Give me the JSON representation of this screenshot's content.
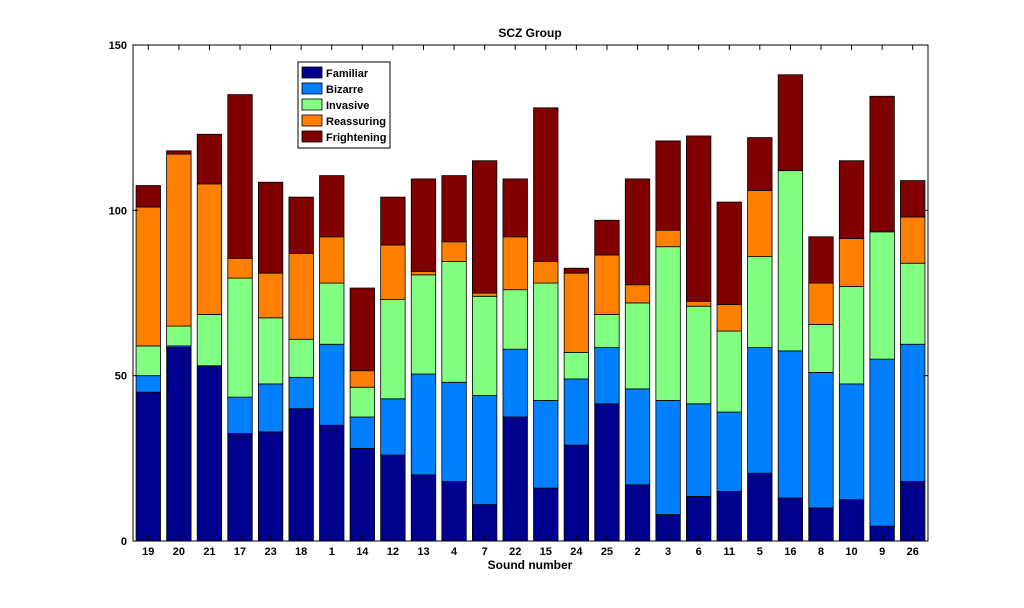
{
  "chart_data": {
    "type": "bar",
    "stacked": true,
    "title": "SCZ Group",
    "xlabel": "Sound number",
    "ylabel": "",
    "ylim": [
      0,
      150
    ],
    "yticks": [
      0,
      50,
      100,
      150
    ],
    "grid": false,
    "legend_position": "top-left",
    "categories": [
      "19",
      "20",
      "21",
      "17",
      "23",
      "18",
      "1",
      "14",
      "12",
      "13",
      "4",
      "7",
      "22",
      "15",
      "24",
      "25",
      "2",
      "3",
      "6",
      "11",
      "5",
      "16",
      "8",
      "10",
      "9",
      "26"
    ],
    "series": [
      {
        "name": "Familiar",
        "color": "#00008F",
        "values": [
          45,
          58.5,
          53,
          32.5,
          33,
          40,
          35,
          28,
          26,
          20,
          18,
          11,
          37.5,
          16,
          29,
          41.5,
          17,
          8,
          13.5,
          15,
          20.5,
          13,
          10,
          12.5,
          4.5,
          18
        ]
      },
      {
        "name": "Bizarre",
        "color": "#0080FF",
        "values": [
          5,
          0.5,
          0,
          11,
          14.5,
          9.5,
          24.5,
          9.5,
          17,
          30.5,
          30,
          33,
          20.5,
          26.5,
          20,
          17,
          29,
          34.5,
          28,
          24,
          38,
          44.5,
          41,
          35,
          50.5,
          41.5
        ]
      },
      {
        "name": "Invasive",
        "color": "#80FF80",
        "values": [
          9,
          6,
          15.5,
          36,
          20,
          11.5,
          18.5,
          9,
          30,
          30,
          36.5,
          30,
          18,
          35.5,
          8,
          10,
          26,
          46.5,
          29.5,
          24.5,
          27.5,
          54.5,
          14.5,
          29.5,
          38.5,
          24.5
        ]
      },
      {
        "name": "Reassuring",
        "color": "#FF7F00",
        "values": [
          42,
          52,
          39.5,
          6,
          13.5,
          26,
          14,
          5,
          16.5,
          1,
          6,
          1,
          16,
          6.5,
          24,
          18,
          5.5,
          5,
          1.5,
          8,
          20,
          0,
          12.5,
          14.5,
          0,
          14
        ]
      },
      {
        "name": "Frightening",
        "color": "#800000",
        "values": [
          6.5,
          1,
          15,
          49.5,
          27.5,
          17,
          18.5,
          25,
          14.5,
          28,
          20,
          40,
          17.5,
          46.5,
          1.5,
          10.5,
          32,
          27,
          50,
          31,
          16,
          29,
          14,
          23.5,
          41,
          11
        ]
      }
    ]
  }
}
